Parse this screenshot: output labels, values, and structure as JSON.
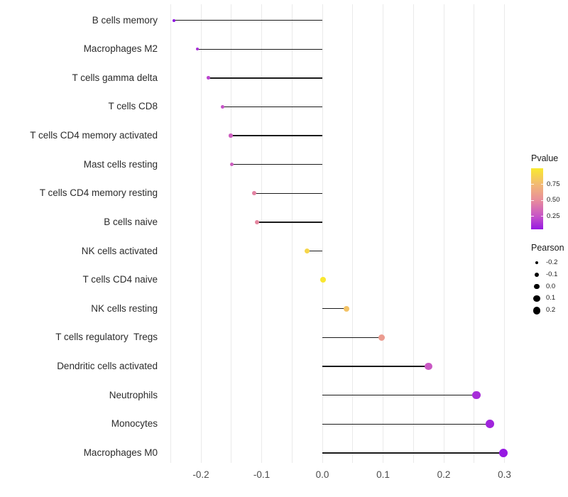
{
  "figure": {
    "background": "#ffffff",
    "panel_grid_color": "#eaeaea",
    "stem_color": "#1a1a1a",
    "axis_text_color": "#4d4d4d",
    "category_text_color": "#2b2b2b"
  },
  "chart_data": {
    "type": "lollipop",
    "orientation": "horizontal",
    "title": "",
    "xlabel": "",
    "ylabel": "",
    "xlim": [
      -0.27,
      0.33
    ],
    "grid": "on",
    "legend_position": "right",
    "categories": [
      "B cells memory",
      "Macrophages M2",
      "T cells gamma delta",
      "T cells CD8",
      "T cells CD4 memory activated",
      "Mast cells resting",
      "T cells CD4 memory resting",
      "B cells naive",
      "NK cells activated",
      "T cells CD4 naive",
      "NK cells resting",
      "T cells regulatory  Tregs",
      "Dendritic cells activated",
      "Neutrophils",
      "Monocytes",
      "Macrophages M0"
    ],
    "points": [
      {
        "label": "B cells memory",
        "pearson": -0.244,
        "pvalue": 0.03
      },
      {
        "label": "Macrophages M2",
        "pearson": -0.206,
        "pvalue": 0.13
      },
      {
        "label": "T cells gamma delta",
        "pearson": -0.188,
        "pvalue": 0.2
      },
      {
        "label": "T cells CD8",
        "pearson": -0.164,
        "pvalue": 0.25
      },
      {
        "label": "T cells CD4 memory activated",
        "pearson": -0.151,
        "pvalue": 0.3
      },
      {
        "label": "Mast cells resting",
        "pearson": -0.149,
        "pvalue": 0.3
      },
      {
        "label": "T cells CD4 memory resting",
        "pearson": -0.112,
        "pvalue": 0.46
      },
      {
        "label": "B cells naive",
        "pearson": -0.108,
        "pvalue": 0.48
      },
      {
        "label": "NK cells activated",
        "pearson": -0.025,
        "pvalue": 0.9
      },
      {
        "label": "T cells CD4 naive",
        "pearson": 0.001,
        "pvalue": 0.99
      },
      {
        "label": "NK cells resting",
        "pearson": 0.04,
        "pvalue": 0.8
      },
      {
        "label": "T cells regulatory  Tregs",
        "pearson": 0.098,
        "pvalue": 0.58
      },
      {
        "label": "Dendritic cells activated",
        "pearson": 0.175,
        "pvalue": 0.27
      },
      {
        "label": "Neutrophils",
        "pearson": 0.254,
        "pvalue": 0.12
      },
      {
        "label": "Monocytes",
        "pearson": 0.276,
        "pvalue": 0.09
      },
      {
        "label": "Macrophages M0",
        "pearson": 0.298,
        "pvalue": 0.05
      }
    ],
    "xticks": [
      {
        "label": "-0.2",
        "value": -0.2
      },
      {
        "label": "-0.1",
        "value": -0.1
      },
      {
        "label": "0.0",
        "value": 0.0
      },
      {
        "label": "0.1",
        "value": 0.1
      },
      {
        "label": "0.2",
        "value": 0.2
      },
      {
        "label": "0.3",
        "value": 0.3
      }
    ],
    "gridline_values": [
      -0.25,
      -0.2,
      -0.15,
      -0.1,
      -0.05,
      0.0,
      0.05,
      0.1,
      0.15,
      0.2,
      0.25,
      0.3
    ],
    "legend_pvalue": {
      "title": "Pvalue",
      "bar_range": [
        0.05,
        1.0
      ],
      "ticks": [
        {
          "label": "0.75",
          "value": 0.75
        },
        {
          "label": "0.50",
          "value": 0.5
        },
        {
          "label": "0.25",
          "value": 0.25
        }
      ],
      "gradient_stops": [
        {
          "p": 0.0,
          "color": "#8A0BE8"
        },
        {
          "p": 0.25,
          "color": "#C653C8"
        },
        {
          "p": 0.5,
          "color": "#E88C9C"
        },
        {
          "p": 0.75,
          "color": "#F2BA74"
        },
        {
          "p": 1.0,
          "color": "#F9E92E"
        }
      ]
    },
    "legend_pearson": {
      "title": "Pearson",
      "dot_color": "#000000",
      "entries": [
        {
          "label": "-0.2",
          "value": -0.2
        },
        {
          "label": "-0.1",
          "value": -0.1
        },
        {
          "label": "0.0",
          "value": 0.0
        },
        {
          "label": "0.1",
          "value": 0.1
        },
        {
          "label": "0.2",
          "value": 0.2
        }
      ]
    }
  }
}
